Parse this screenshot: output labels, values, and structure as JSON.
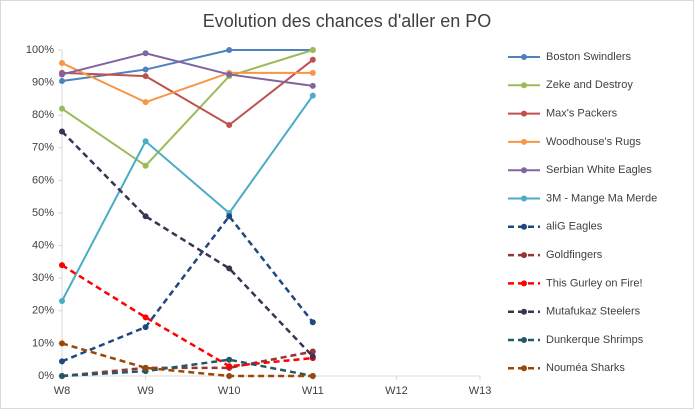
{
  "chart_data": {
    "type": "line",
    "title": "Evolution des chances d'aller en PO",
    "categories": [
      "W8",
      "W9",
      "W10",
      "W11",
      "W12",
      "W13"
    ],
    "ylim": [
      0,
      100
    ],
    "yticks": [
      {
        "value": 0,
        "label": "0%"
      },
      {
        "value": 10,
        "label": "10%"
      },
      {
        "value": 20,
        "label": "20%"
      },
      {
        "value": 30,
        "label": "30%"
      },
      {
        "value": 40,
        "label": "40%"
      },
      {
        "value": 50,
        "label": "50%"
      },
      {
        "value": 60,
        "label": "60%"
      },
      {
        "value": 70,
        "label": "70%"
      },
      {
        "value": 80,
        "label": "80%"
      },
      {
        "value": 90,
        "label": "90%"
      },
      {
        "value": 100,
        "label": "100%"
      }
    ],
    "grid": false,
    "legend": "right",
    "series": [
      {
        "name": "Boston Swindlers",
        "color": "#4f81bd",
        "dashed": false,
        "values": [
          90.5,
          94,
          100,
          100,
          null,
          null
        ]
      },
      {
        "name": "Zeke and Destroy",
        "color": "#9bbb59",
        "dashed": false,
        "values": [
          82,
          64.5,
          92,
          100,
          null,
          null
        ]
      },
      {
        "name": "Max's Packers",
        "color": "#c0504d",
        "dashed": false,
        "values": [
          93,
          92,
          77,
          97,
          null,
          null
        ]
      },
      {
        "name": "Woodhouse's Rugs",
        "color": "#f79646",
        "dashed": false,
        "values": [
          96,
          84,
          93,
          93,
          null,
          null
        ]
      },
      {
        "name": "Serbian White Eagles",
        "color": "#8064a2",
        "dashed": false,
        "values": [
          92.5,
          99,
          92.5,
          89,
          null,
          null
        ]
      },
      {
        "name": "3M - Mange Ma Merde",
        "color": "#4bacc6",
        "dashed": false,
        "values": [
          23,
          72,
          50,
          86,
          null,
          null
        ]
      },
      {
        "name": "aliG Eagles",
        "color": "#1f497d",
        "dashed": true,
        "values": [
          4.5,
          15,
          49,
          16.5,
          null,
          null
        ]
      },
      {
        "name": "Goldfingers",
        "color": "#943634",
        "dashed": true,
        "values": [
          0,
          2.5,
          2.5,
          7.5,
          null,
          null
        ]
      },
      {
        "name": "This Gurley on Fire!",
        "color": "#ff0000",
        "dashed": true,
        "values": [
          34,
          18,
          3,
          5.5,
          null,
          null
        ]
      },
      {
        "name": "Mutafukaz Steelers",
        "color": "#3f3151",
        "dashed": true,
        "values": [
          75,
          49,
          33,
          6,
          null,
          null
        ]
      },
      {
        "name": "Dunkerque Shrimps",
        "color": "#215967",
        "dashed": true,
        "values": [
          0,
          1.5,
          5,
          0,
          null,
          null
        ]
      },
      {
        "name": "Nouméa Sharks",
        "color": "#984807",
        "dashed": true,
        "values": [
          10,
          2.5,
          0,
          0,
          null,
          null
        ]
      }
    ]
  }
}
